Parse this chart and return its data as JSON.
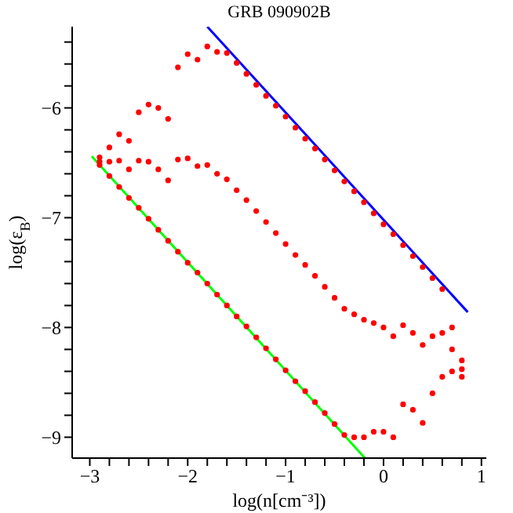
{
  "chart_data": {
    "type": "scatter",
    "title": "GRB 090902B",
    "xlabel": "log(n[cm⁻³])",
    "ylabel": "log(ε$_{B}$)",
    "xlim": [
      -3.18,
      1.05
    ],
    "ylim": [
      -9.19,
      -5.26
    ],
    "xticks": [
      -3,
      {
        "value": -2.8,
        "label": null
      },
      {
        "value": -2.6,
        "label": null
      },
      {
        "value": -2.4,
        "label": null
      },
      {
        "value": -2.2,
        "label": null
      },
      -2,
      {
        "value": -1.8,
        "label": null
      },
      {
        "value": -1.6,
        "label": null
      },
      {
        "value": -1.4,
        "label": null
      },
      {
        "value": -1.2,
        "label": null
      },
      -1,
      {
        "value": -0.8,
        "label": null
      },
      {
        "value": -0.6,
        "label": null
      },
      {
        "value": -0.4,
        "label": null
      },
      {
        "value": -0.2,
        "label": null
      },
      0,
      {
        "value": 0.2,
        "label": null
      },
      {
        "value": 0.4,
        "label": null
      },
      {
        "value": 0.6,
        "label": null
      },
      {
        "value": 0.8,
        "label": null
      },
      1
    ],
    "yticks": [
      {
        "value": -5.4,
        "label": null
      },
      {
        "value": -5.6,
        "label": null
      },
      {
        "value": -5.8,
        "label": null
      },
      -6,
      {
        "value": -6.2,
        "label": null
      },
      {
        "value": -6.4,
        "label": null
      },
      {
        "value": -6.6,
        "label": null
      },
      {
        "value": -6.8,
        "label": null
      },
      -7,
      {
        "value": -7.2,
        "label": null
      },
      {
        "value": -7.4,
        "label": null
      },
      {
        "value": -7.6,
        "label": null
      },
      {
        "value": -7.8,
        "label": null
      },
      -8,
      {
        "value": -8.2,
        "label": null
      },
      {
        "value": -8.4,
        "label": null
      },
      {
        "value": -8.6,
        "label": null
      },
      {
        "value": -8.8,
        "label": null
      },
      -9
    ],
    "marker": "circle",
    "series": [
      {
        "color": "#ff0000",
        "x": [
          -2.9,
          -2.8,
          -2.7,
          -2.6,
          -2.5,
          -2.4,
          -2.3,
          -2.2,
          -2.1,
          -2.0,
          -1.9,
          -1.8,
          -1.7,
          -1.6,
          -1.5,
          -1.4,
          -1.3,
          -1.2,
          -1.1,
          -1.0,
          -0.9,
          -0.8,
          -0.7,
          -0.6,
          -0.5,
          -0.4,
          -0.3,
          -0.2,
          -0.1,
          0.0,
          0.1,
          0.2,
          0.3,
          0.4,
          0.5,
          0.6,
          0.7,
          0.8,
          -2.9,
          -2.8,
          -2.7,
          -2.6,
          -2.5,
          -2.4,
          -2.3,
          -2.2,
          -2.1,
          -2.0,
          -1.9,
          -1.8,
          -1.7,
          -1.6,
          -1.5,
          -1.4,
          -1.3,
          -1.2,
          -1.1,
          -1.0,
          -0.9,
          -0.8,
          -0.7,
          -0.6,
          -0.5,
          -0.4,
          -0.3,
          -0.2,
          -0.1,
          0.0,
          0.1,
          0.2,
          0.3,
          0.4,
          0.5,
          0.6,
          0.7,
          0.8,
          -2.9,
          -2.8,
          -2.7,
          -2.6,
          -2.5,
          -2.4,
          -2.3,
          -2.2,
          -2.1,
          -2.0,
          -1.9,
          -1.8,
          -1.7,
          -1.6,
          -1.5,
          -1.4,
          -1.3,
          -1.2,
          -1.1,
          -1.0,
          -0.9,
          -0.8,
          -0.7,
          -0.6,
          -0.5,
          -0.4,
          -0.3,
          -0.2,
          -0.1,
          0.0,
          0.1,
          0.2,
          0.3,
          0.4,
          0.5,
          0.6,
          0.7,
          0.8
        ],
        "values": [
          -6.45,
          -6.36,
          -6.24,
          -6.3,
          -6.04,
          -5.97,
          -6.0,
          -6.1,
          -5.63,
          -5.51,
          -5.56,
          -5.44,
          -5.49,
          -5.5,
          -5.59,
          -5.69,
          -5.79,
          -5.89,
          -5.98,
          -6.08,
          -6.18,
          -6.28,
          -6.37,
          -6.47,
          -6.57,
          -6.67,
          -6.76,
          -6.86,
          -6.96,
          -7.06,
          -7.15,
          -7.25,
          -7.35,
          -7.45,
          -7.55,
          -7.65,
          -8.0,
          -8.3,
          -6.52,
          -6.62,
          -6.72,
          -6.82,
          -6.91,
          -7.01,
          -7.11,
          -7.21,
          -7.31,
          -7.41,
          -7.5,
          -7.6,
          -7.7,
          -7.8,
          -7.9,
          -7.99,
          -8.09,
          -8.19,
          -8.29,
          -8.39,
          -8.49,
          -8.58,
          -8.68,
          -8.78,
          -8.88,
          -8.98,
          -9.0,
          -9.0,
          -8.95,
          -8.95,
          -9.0,
          -8.7,
          -8.75,
          -8.87,
          -8.6,
          -8.45,
          -8.4,
          -8.45,
          -6.49,
          -6.49,
          -6.48,
          -6.56,
          -6.48,
          -6.49,
          -6.56,
          -6.66,
          -6.47,
          -6.46,
          -6.53,
          -6.52,
          -6.6,
          -6.65,
          -6.75,
          -6.84,
          -6.94,
          -7.04,
          -7.14,
          -7.24,
          -7.34,
          -7.43,
          -7.53,
          -7.63,
          -7.73,
          -7.83,
          -7.88,
          -7.93,
          -7.96,
          -8.0,
          -8.08,
          -7.98,
          -8.05,
          -8.16,
          -8.08,
          -8.05,
          -8.2,
          -8.38
        ]
      },
      {
        "type": "line",
        "color": "#0000ff",
        "marker": "none",
        "x": [
          -1.8,
          0.86
        ],
        "values": [
          -5.26,
          -7.86
        ]
      },
      {
        "type": "line",
        "color": "#00ff00",
        "marker": "none",
        "x": [
          -2.98,
          -0.19
        ],
        "values": [
          -6.44,
          -9.19
        ]
      }
    ]
  }
}
